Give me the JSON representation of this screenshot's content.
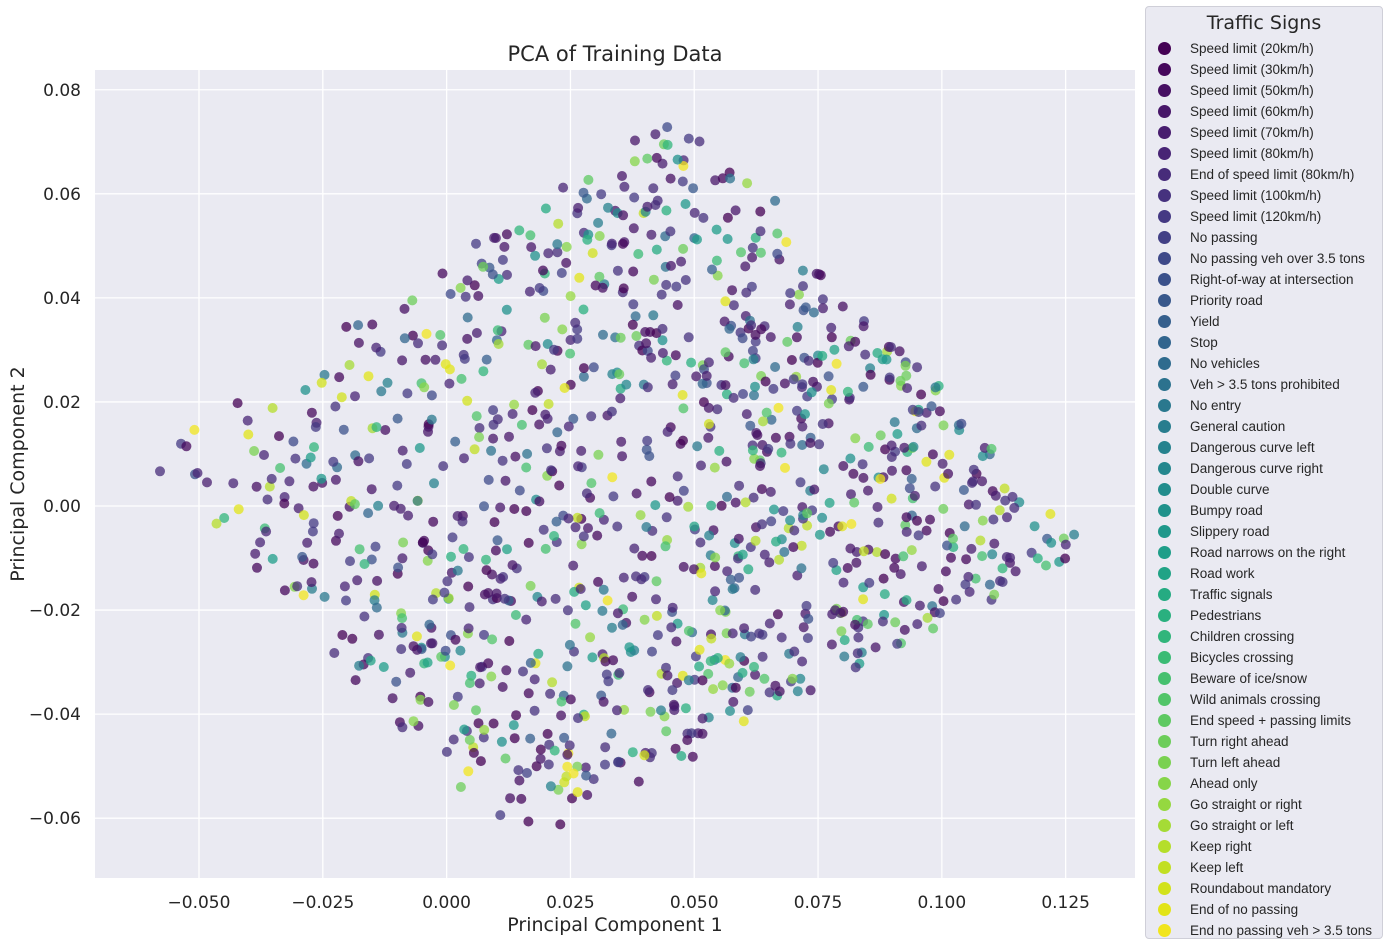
{
  "chart_data": {
    "type": "scatter",
    "title": "PCA of Training Data",
    "xlabel": "Principal Component 1",
    "ylabel": "Principal Component 2",
    "xlim": [
      -0.071,
      0.139
    ],
    "ylim": [
      -0.0715,
      0.0838
    ],
    "xticks": [
      -0.05,
      -0.025,
      0.0,
      0.025,
      0.05,
      0.075,
      0.1,
      0.125
    ],
    "xtick_labels": [
      "−0.050",
      "−0.025",
      "0.000",
      "0.025",
      "0.050",
      "0.075",
      "0.100",
      "0.125"
    ],
    "yticks": [
      -0.06,
      -0.04,
      -0.02,
      0.0,
      0.02,
      0.04,
      0.06,
      0.08
    ],
    "ytick_labels": [
      "−0.06",
      "−0.04",
      "−0.02",
      "0.00",
      "0.02",
      "0.04",
      "0.06",
      "0.08"
    ],
    "grid": true,
    "colormap": "viridis",
    "approx_point_count": 1200,
    "point_cloud_extent": {
      "left_tip": [
        -0.06,
        0.009
      ],
      "top": [
        0.047,
        0.077
      ],
      "right_tip": [
        0.13,
        -0.009
      ],
      "bottom": [
        0.014,
        -0.065
      ]
    },
    "legend": {
      "title": "Traffic Signs",
      "placement": "outside-right",
      "entries": [
        {
          "label": "Speed limit (20km/h)",
          "color": "#440154"
        },
        {
          "label": "Speed limit (30km/h)",
          "color": "#46085c"
        },
        {
          "label": "Speed limit (50km/h)",
          "color": "#471063"
        },
        {
          "label": "Speed limit (60km/h)",
          "color": "#481769"
        },
        {
          "label": "Speed limit (70km/h)",
          "color": "#481d6f"
        },
        {
          "label": "Speed limit (80km/h)",
          "color": "#482475"
        },
        {
          "label": "End of speed limit (80km/h)",
          "color": "#472c7a"
        },
        {
          "label": "Speed limit (100km/h)",
          "color": "#46327e"
        },
        {
          "label": "Speed limit (120km/h)",
          "color": "#443983"
        },
        {
          "label": "No passing",
          "color": "#424086"
        },
        {
          "label": "No passing veh over 3.5 tons",
          "color": "#3e4989"
        },
        {
          "label": "Right-of-way at intersection",
          "color": "#3b518b"
        },
        {
          "label": "Priority road",
          "color": "#38588c"
        },
        {
          "label": "Yield",
          "color": "#355f8d"
        },
        {
          "label": "Stop",
          "color": "#32658e"
        },
        {
          "label": "No vehicles",
          "color": "#2f6b8e"
        },
        {
          "label": "Veh > 3.5 tons prohibited",
          "color": "#2c728e"
        },
        {
          "label": "No entry",
          "color": "#2a788e"
        },
        {
          "label": "General caution",
          "color": "#287d8e"
        },
        {
          "label": "Dangerous curve left",
          "color": "#26828e"
        },
        {
          "label": "Dangerous curve right",
          "color": "#24878e"
        },
        {
          "label": "Double curve",
          "color": "#228d8d"
        },
        {
          "label": "Bumpy road",
          "color": "#20928c"
        },
        {
          "label": "Slippery road",
          "color": "#1f988b"
        },
        {
          "label": "Road narrows on the right",
          "color": "#1f9e89"
        },
        {
          "label": "Road work",
          "color": "#21a386"
        },
        {
          "label": "Traffic signals",
          "color": "#25ab82"
        },
        {
          "label": "Pedestrians",
          "color": "#2ab07f"
        },
        {
          "label": "Children crossing",
          "color": "#31b57b"
        },
        {
          "label": "Bicycles crossing",
          "color": "#3bbb75"
        },
        {
          "label": "Beware of ice/snow",
          "color": "#46c06f"
        },
        {
          "label": "Wild animals crossing",
          "color": "#52c569"
        },
        {
          "label": "End speed + passing limits",
          "color": "#5ec962"
        },
        {
          "label": "Turn right ahead",
          "color": "#6ccd5a"
        },
        {
          "label": "Turn left ahead",
          "color": "#7ad151"
        },
        {
          "label": "Ahead only",
          "color": "#86d549"
        },
        {
          "label": "Go straight or right",
          "color": "#95d840"
        },
        {
          "label": "Go straight or left",
          "color": "#a5db36"
        },
        {
          "label": "Keep right",
          "color": "#b5de2b"
        },
        {
          "label": "Keep left",
          "color": "#c2df23"
        },
        {
          "label": "Roundabout mandatory",
          "color": "#d2e21b"
        },
        {
          "label": "End of no passing",
          "color": "#e2e418"
        },
        {
          "label": "End no passing veh > 3.5 tons",
          "color": "#f1e51d"
        }
      ]
    }
  }
}
